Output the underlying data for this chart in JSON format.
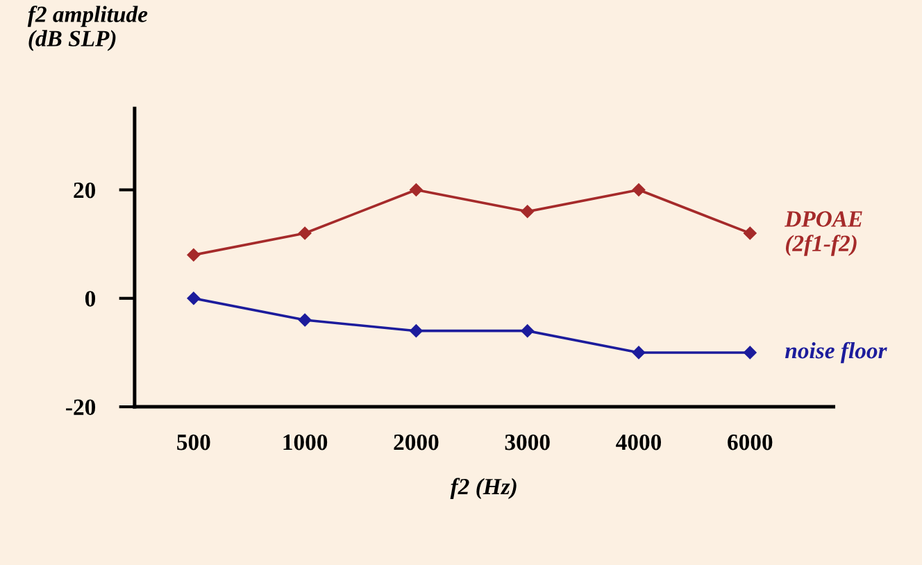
{
  "chart_data": {
    "type": "line",
    "ylabel": "f2 amplitude\n(dB SLP)",
    "xlabel": "f2 (Hz)",
    "categories": [
      "500",
      "1000",
      "2000",
      "3000",
      "4000",
      "6000"
    ],
    "series": [
      {
        "name": "DPOAE\n(2f1-f2)",
        "color": "#a52a2a",
        "values": [
          8,
          12,
          20,
          16,
          20,
          12
        ]
      },
      {
        "name": "noise floor",
        "color": "#1c1c9c",
        "values": [
          0,
          -4,
          -6,
          -6,
          -10,
          -10
        ]
      }
    ],
    "ylim": [
      -20,
      35
    ],
    "yticks": [
      -20,
      0,
      20
    ],
    "grid": false,
    "marker": "diamond",
    "line_style": "solid"
  }
}
